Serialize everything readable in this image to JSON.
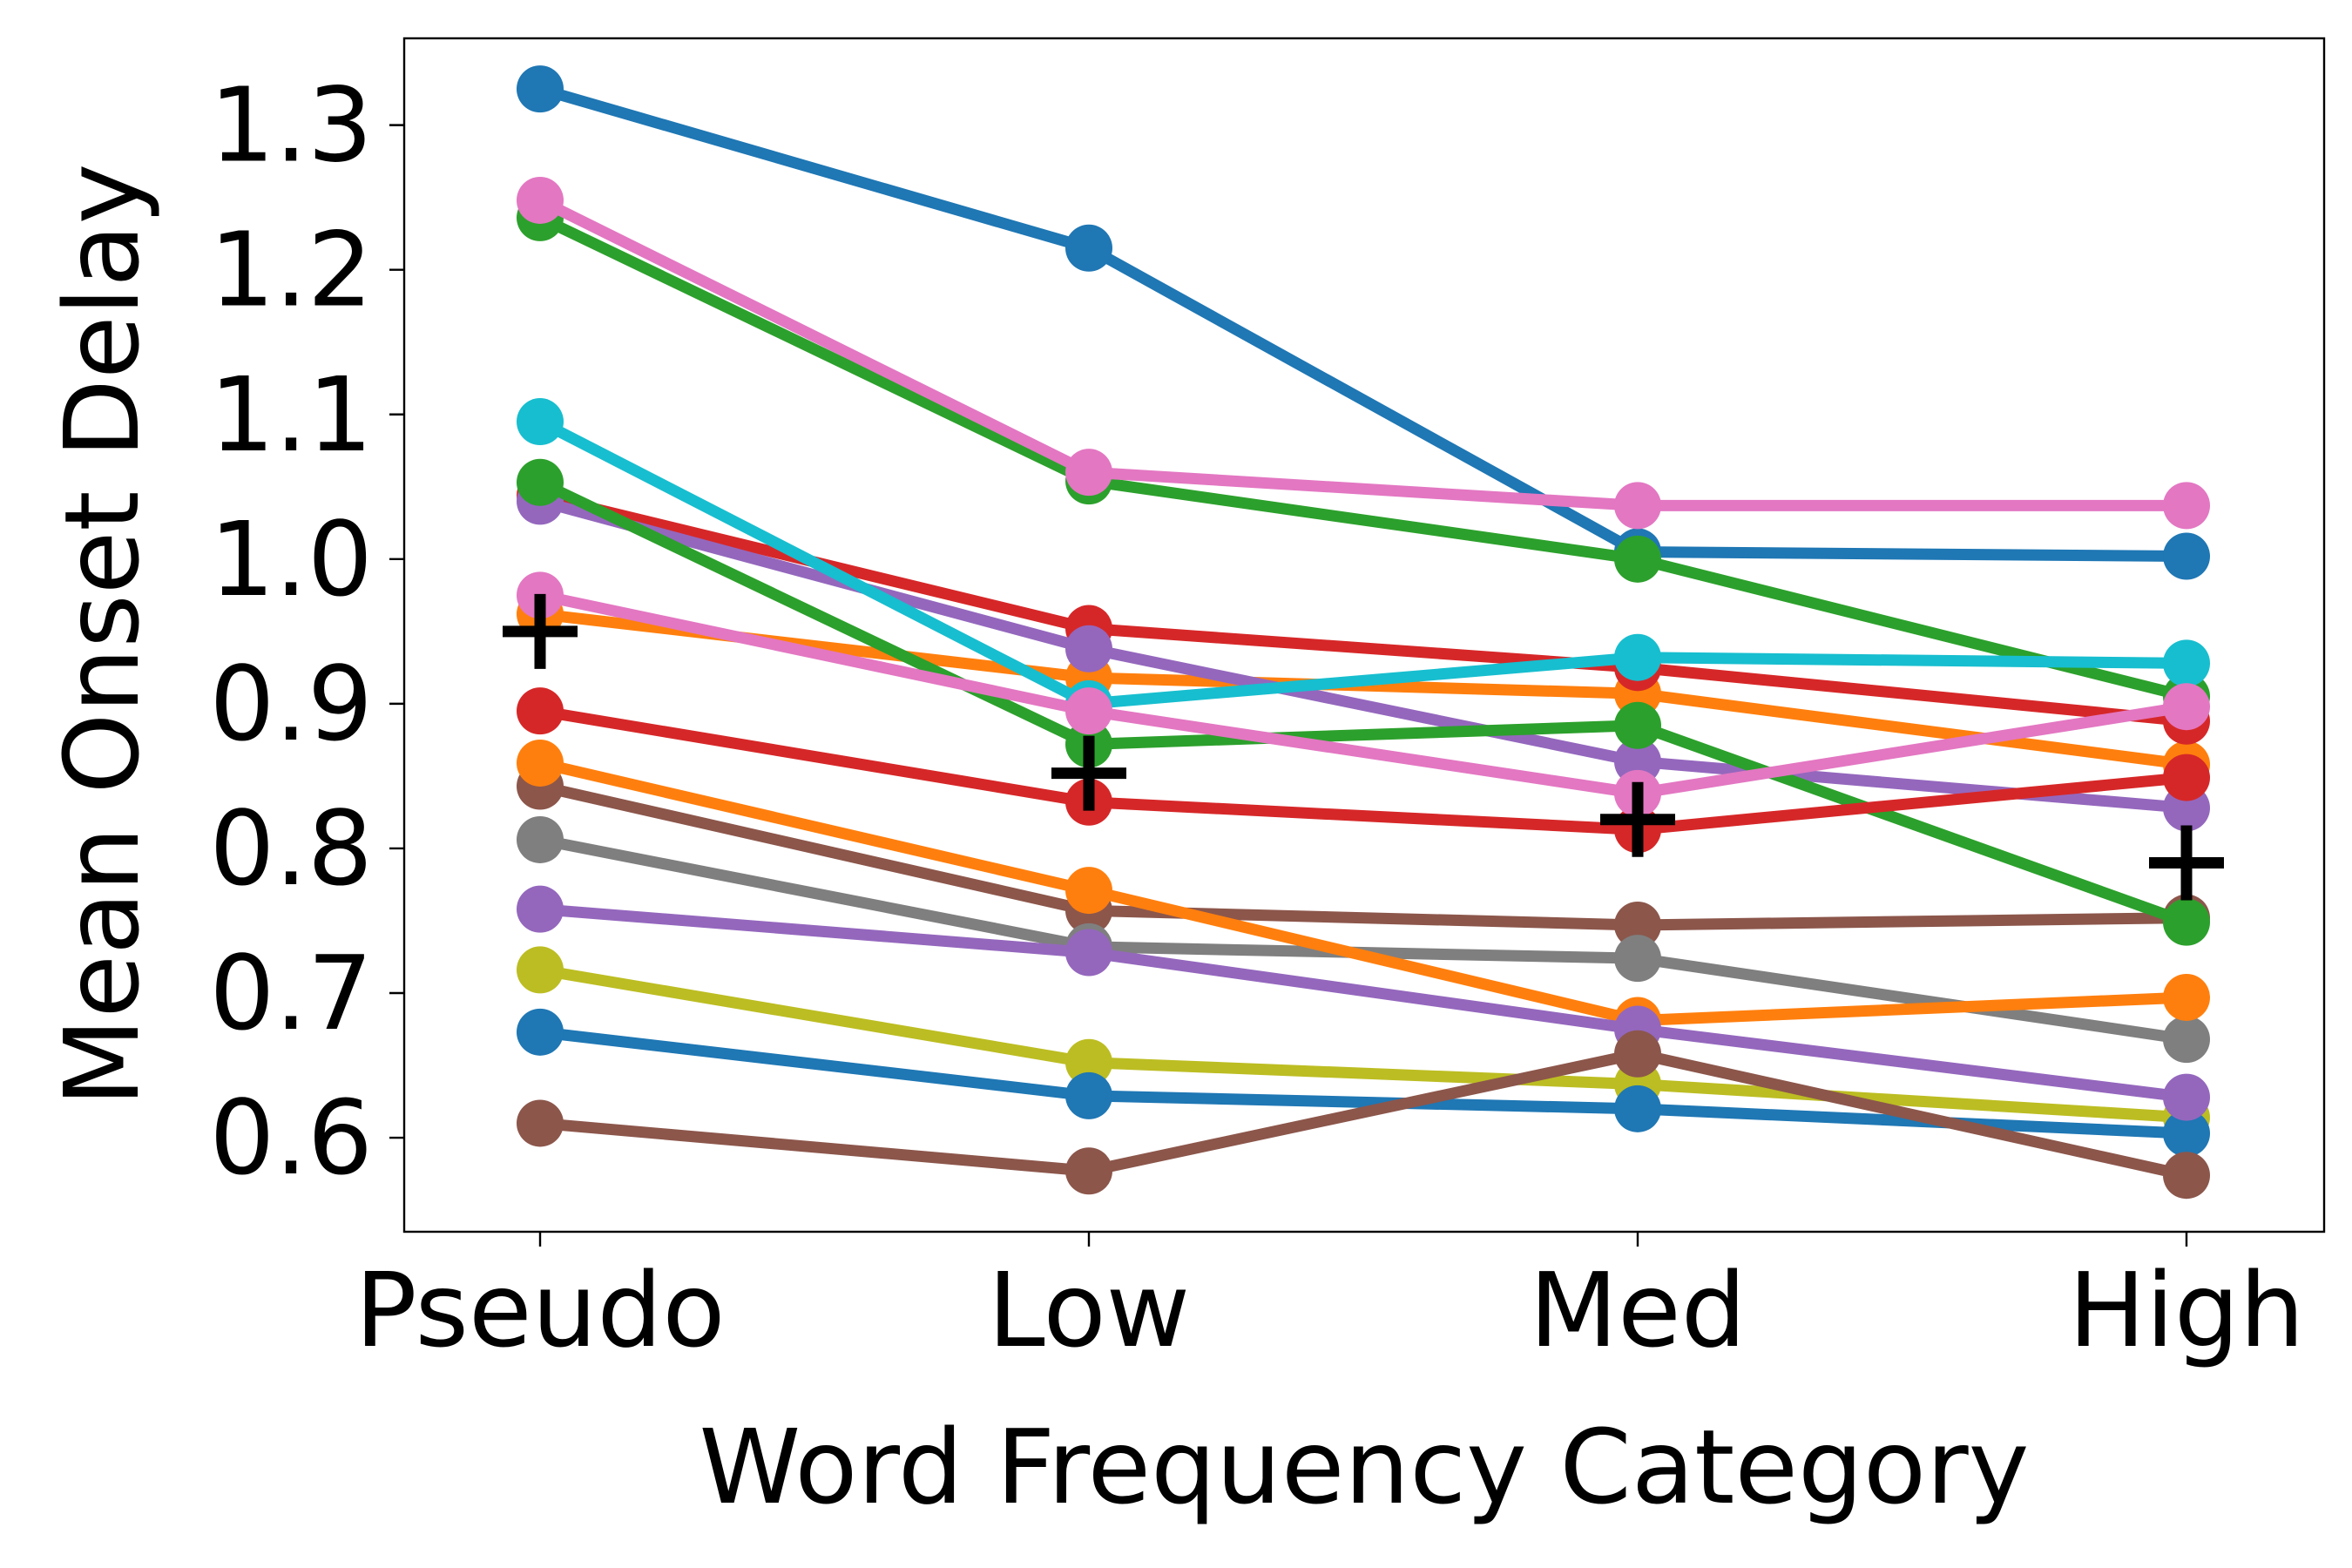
{
  "chart_data": {
    "type": "line",
    "title": "",
    "xlabel": "Word Frequency Category",
    "ylabel": "Mean Onset Delay",
    "categories": [
      "Pseudo",
      "Low",
      "Med",
      "High"
    ],
    "ylim": [
      0.535,
      1.36
    ],
    "yticks": [
      0.6,
      0.7,
      0.8,
      0.9,
      1.0,
      1.1,
      1.2,
      1.3
    ],
    "ytick_labels": [
      "0.6",
      "0.7",
      "0.8",
      "0.9",
      "1.0",
      "1.1",
      "1.2",
      "1.3"
    ],
    "grid": false,
    "legend": "none",
    "series": [
      {
        "name": "s1",
        "color": "#1f77b4",
        "values": [
          1.325,
          1.215,
          1.005,
          1.002
        ]
      },
      {
        "name": "s2",
        "color": "#ff7f0e",
        "values": [
          0.962,
          0.918,
          0.907,
          0.858
        ]
      },
      {
        "name": "s3",
        "color": "#2ca02c",
        "values": [
          1.236,
          1.054,
          1.0,
          0.905
        ]
      },
      {
        "name": "s4",
        "color": "#d62728",
        "values": [
          1.044,
          0.952,
          0.925,
          0.888
        ]
      },
      {
        "name": "s5",
        "color": "#9467bd",
        "values": [
          1.04,
          0.938,
          0.86,
          0.828
        ]
      },
      {
        "name": "s6",
        "color": "#8c564b",
        "values": [
          0.843,
          0.757,
          0.747,
          0.752
        ]
      },
      {
        "name": "s7",
        "color": "#e377c2",
        "values": [
          1.248,
          1.06,
          1.037,
          1.037
        ]
      },
      {
        "name": "s8",
        "color": "#7f7f7f",
        "values": [
          0.806,
          0.732,
          0.724,
          0.668
        ]
      },
      {
        "name": "s9",
        "color": "#bcbd22",
        "values": [
          0.716,
          0.652,
          0.637,
          0.614
        ]
      },
      {
        "name": "s10",
        "color": "#17becf",
        "values": [
          1.095,
          0.9,
          0.932,
          0.928
        ]
      },
      {
        "name": "s11",
        "color": "#1f77b4",
        "values": [
          0.673,
          0.629,
          0.62,
          0.603
        ]
      },
      {
        "name": "s12",
        "color": "#ff7f0e",
        "values": [
          0.859,
          0.771,
          0.681,
          0.697
        ]
      },
      {
        "name": "s13",
        "color": "#2ca02c",
        "values": [
          1.053,
          0.872,
          0.885,
          0.749
        ]
      },
      {
        "name": "s14",
        "color": "#d62728",
        "values": [
          0.895,
          0.832,
          0.813,
          0.849
        ]
      },
      {
        "name": "s15",
        "color": "#9467bd",
        "values": [
          0.758,
          0.728,
          0.675,
          0.628
        ]
      },
      {
        "name": "s16",
        "color": "#8c564b",
        "values": [
          0.61,
          0.577,
          0.658,
          0.574
        ]
      },
      {
        "name": "s17",
        "color": "#e377c2",
        "values": [
          0.975,
          0.895,
          0.838,
          0.898
        ]
      }
    ],
    "mean_markers": {
      "color": "#000000",
      "values": [
        0.95,
        0.852,
        0.82,
        0.79
      ]
    }
  }
}
